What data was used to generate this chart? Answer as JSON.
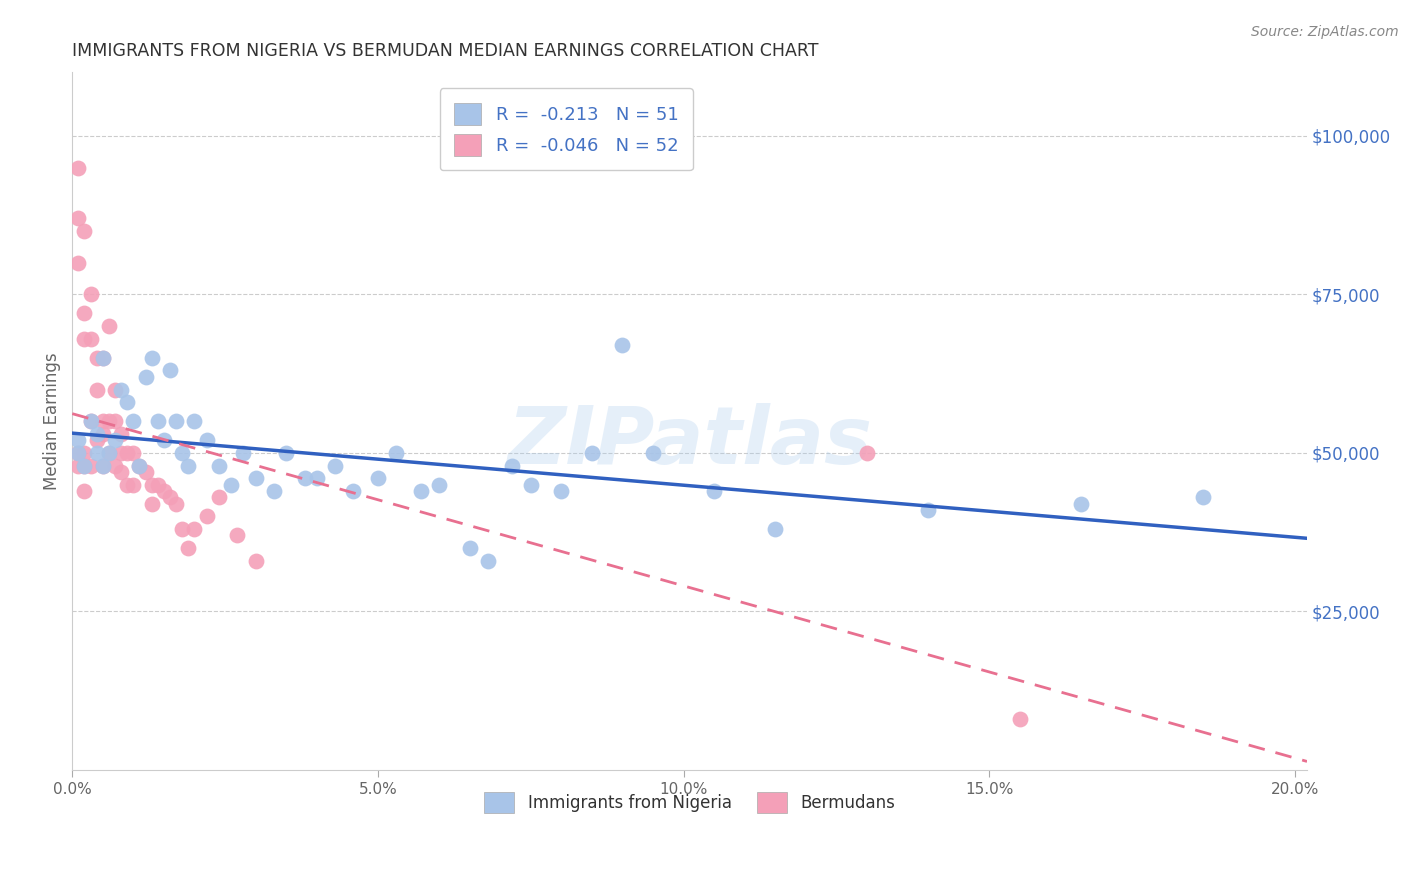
{
  "title": "IMMIGRANTS FROM NIGERIA VS BERMUDAN MEDIAN EARNINGS CORRELATION CHART",
  "source": "Source: ZipAtlas.com",
  "ylabel": "Median Earnings",
  "watermark": "ZIPatlas",
  "r_nigeria": -0.213,
  "n_nigeria": 51,
  "r_bermuda": -0.046,
  "n_bermuda": 52,
  "nigeria_color": "#a8c4e8",
  "bermuda_color": "#f4a0b8",
  "nigeria_line_color": "#3060c0",
  "bermuda_line_color": "#e87090",
  "title_color": "#333333",
  "right_axis_color": "#4472c4",
  "ytick_labels": [
    "$25,000",
    "$50,000",
    "$75,000",
    "$100,000"
  ],
  "ytick_values": [
    25000,
    50000,
    75000,
    100000
  ],
  "ylim": [
    0,
    110000
  ],
  "xlim": [
    0.0,
    0.202
  ],
  "nigeria_x": [
    0.001,
    0.001,
    0.002,
    0.003,
    0.004,
    0.004,
    0.005,
    0.005,
    0.006,
    0.007,
    0.008,
    0.009,
    0.01,
    0.011,
    0.012,
    0.013,
    0.014,
    0.015,
    0.016,
    0.017,
    0.018,
    0.019,
    0.02,
    0.022,
    0.024,
    0.026,
    0.028,
    0.03,
    0.033,
    0.035,
    0.038,
    0.04,
    0.043,
    0.046,
    0.05,
    0.053,
    0.057,
    0.06,
    0.065,
    0.068,
    0.072,
    0.075,
    0.08,
    0.085,
    0.09,
    0.095,
    0.105,
    0.115,
    0.14,
    0.165,
    0.185
  ],
  "nigeria_y": [
    52000,
    50000,
    48000,
    55000,
    50000,
    53000,
    48000,
    65000,
    50000,
    52000,
    60000,
    58000,
    55000,
    48000,
    62000,
    65000,
    55000,
    52000,
    63000,
    55000,
    50000,
    48000,
    55000,
    52000,
    48000,
    45000,
    50000,
    46000,
    44000,
    50000,
    46000,
    46000,
    48000,
    44000,
    46000,
    50000,
    44000,
    45000,
    35000,
    33000,
    48000,
    45000,
    44000,
    50000,
    67000,
    50000,
    44000,
    38000,
    41000,
    42000,
    43000
  ],
  "bermuda_x": [
    0.001,
    0.001,
    0.001,
    0.001,
    0.001,
    0.002,
    0.002,
    0.002,
    0.002,
    0.002,
    0.002,
    0.003,
    0.003,
    0.003,
    0.003,
    0.004,
    0.004,
    0.004,
    0.005,
    0.005,
    0.005,
    0.005,
    0.006,
    0.006,
    0.006,
    0.007,
    0.007,
    0.007,
    0.008,
    0.008,
    0.008,
    0.009,
    0.009,
    0.01,
    0.01,
    0.011,
    0.012,
    0.013,
    0.013,
    0.014,
    0.015,
    0.016,
    0.017,
    0.018,
    0.019,
    0.02,
    0.022,
    0.024,
    0.027,
    0.03,
    0.13,
    0.155
  ],
  "bermuda_y": [
    95000,
    87000,
    80000,
    50000,
    48000,
    85000,
    72000,
    68000,
    50000,
    48000,
    44000,
    75000,
    68000,
    55000,
    48000,
    65000,
    60000,
    52000,
    65000,
    55000,
    53000,
    48000,
    70000,
    55000,
    50000,
    60000,
    55000,
    48000,
    53000,
    50000,
    47000,
    50000,
    45000,
    50000,
    45000,
    48000,
    47000,
    45000,
    42000,
    45000,
    44000,
    43000,
    42000,
    38000,
    35000,
    38000,
    40000,
    43000,
    37000,
    33000,
    50000,
    8000
  ]
}
